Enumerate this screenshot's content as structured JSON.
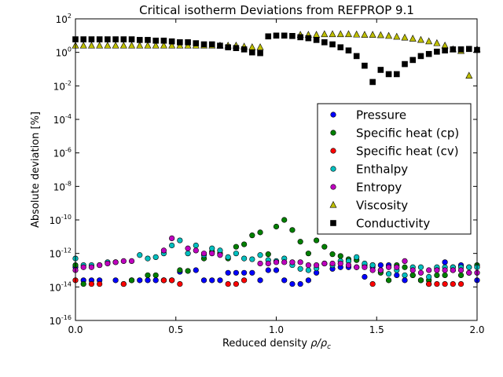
{
  "chart_data": {
    "type": "scatter",
    "title": "Critical isotherm Deviations from REFPROP 9.1",
    "xlabel": "Reduced density ρ/ρ_c",
    "xlabel_main": "Reduced density ",
    "xlabel_sym": "ρ/ρ",
    "xlabel_sub": "c",
    "ylabel": "Absolute deviation [%]",
    "xlim": [
      0,
      2
    ],
    "ylim_log10": [
      -16,
      2
    ],
    "yscale": "log",
    "grid": false,
    "legend_placement": "right",
    "x_ticks": [
      "0.0",
      "0.5",
      "1.0",
      "1.5",
      "2.0"
    ],
    "y_ticks": [
      {
        "base": "10",
        "exp": "2"
      },
      {
        "base": "10",
        "exp": "0"
      },
      {
        "base": "10",
        "exp": "-2"
      },
      {
        "base": "10",
        "exp": "-4"
      },
      {
        "base": "10",
        "exp": "-6"
      },
      {
        "base": "10",
        "exp": "-8"
      },
      {
        "base": "10",
        "exp": "-10"
      },
      {
        "base": "10",
        "exp": "-12"
      },
      {
        "base": "10",
        "exp": "-14"
      },
      {
        "base": "10",
        "exp": "-16"
      }
    ],
    "x": [
      0.0,
      0.04,
      0.08,
      0.12,
      0.16,
      0.2,
      0.24,
      0.28,
      0.32,
      0.36,
      0.4,
      0.44,
      0.48,
      0.52,
      0.56,
      0.6,
      0.64,
      0.68,
      0.72,
      0.76,
      0.8,
      0.84,
      0.88,
      0.92,
      0.96,
      1.0,
      1.04,
      1.08,
      1.12,
      1.16,
      1.2,
      1.24,
      1.28,
      1.32,
      1.36,
      1.4,
      1.44,
      1.48,
      1.52,
      1.56,
      1.6,
      1.64,
      1.68,
      1.72,
      1.76,
      1.8,
      1.84,
      1.88,
      1.92,
      1.96,
      2.0
    ],
    "series": [
      {
        "name": "Pressure",
        "marker": "circle",
        "color": "#0000ff",
        "values": [
          1.5e-13,
          2.5e-14,
          2.5e-14,
          2.5e-14,
          null,
          2.5e-14,
          null,
          2.5e-14,
          2.5e-14,
          2.5e-14,
          2.5e-14,
          2.5e-14,
          2.5e-14,
          8e-14,
          null,
          1e-13,
          2.5e-14,
          2.5e-14,
          2.5e-14,
          7e-14,
          7e-14,
          7e-14,
          7e-14,
          2.5e-14,
          1e-13,
          1e-13,
          2.5e-14,
          1.5e-14,
          1.5e-14,
          2.5e-14,
          7e-14,
          2.5e-13,
          1.2e-13,
          1.5e-13,
          1.5e-13,
          1.5e-13,
          4e-14,
          1.5e-13,
          2e-13,
          2e-13,
          5e-14,
          2.5e-14,
          5e-14,
          2.5e-14,
          1.5e-14,
          1.2e-13,
          3e-13,
          1.5e-13,
          2e-13,
          1.5e-13,
          2.5e-14
        ]
      },
      {
        "name": "Specific heat (cp)",
        "marker": "circle",
        "color": "#008000",
        "values": [
          2e-13,
          1.5e-14,
          null,
          null,
          null,
          null,
          1.5e-14,
          2.5e-14,
          null,
          5e-14,
          5e-14,
          2.5e-14,
          null,
          1e-13,
          9e-14,
          null,
          5e-13,
          1.3e-12,
          1e-12,
          5e-13,
          2.5e-12,
          3.5e-12,
          1.2e-11,
          1.8e-11,
          9e-13,
          4e-11,
          1e-10,
          2.5e-11,
          5e-12,
          1e-12,
          6e-12,
          2.5e-12,
          9e-13,
          7e-13,
          4.5e-13,
          4e-13,
          2e-13,
          2e-13,
          7e-14,
          2.5e-14,
          2e-13,
          1.5e-13,
          5e-14,
          2.5e-14,
          2.5e-14,
          5e-14,
          5e-14,
          1e-13,
          5e-14,
          7e-14,
          2e-13
        ]
      },
      {
        "name": "Specific heat (cv)",
        "marker": "circle",
        "color": "#ff0000",
        "values": [
          2.5e-14,
          null,
          1.5e-14,
          1.5e-14,
          null,
          null,
          1.5e-14,
          null,
          null,
          null,
          null,
          2.5e-14,
          2.5e-14,
          1.5e-14,
          null,
          null,
          null,
          null,
          null,
          1.5e-14,
          1.5e-14,
          2.5e-14,
          null,
          null,
          null,
          null,
          null,
          null,
          null,
          null,
          null,
          null,
          null,
          null,
          null,
          null,
          null,
          1.5e-14,
          null,
          null,
          null,
          null,
          null,
          null,
          1.5e-14,
          1.5e-14,
          1.5e-14,
          1.5e-14,
          1.5e-14,
          null,
          null
        ]
      },
      {
        "name": "Enthalpy",
        "marker": "circle",
        "color": "#00bfbf",
        "values": [
          5e-13,
          2e-13,
          2e-13,
          2e-13,
          3e-13,
          3e-13,
          null,
          null,
          8e-13,
          5e-13,
          6e-13,
          1e-12,
          3e-12,
          6e-12,
          1e-12,
          3e-12,
          8e-13,
          2e-12,
          1.5e-12,
          6e-13,
          1e-12,
          5e-13,
          4.5e-13,
          8e-13,
          4e-13,
          3.5e-13,
          5e-13,
          2e-13,
          1.2e-13,
          1e-13,
          1.3e-13,
          2.5e-13,
          2e-13,
          3.5e-13,
          3.5e-13,
          6e-13,
          2.5e-13,
          2e-13,
          1e-13,
          6e-14,
          1e-13,
          5e-14,
          1.5e-13,
          1.5e-13,
          4e-14,
          1.5e-13,
          1.5e-13,
          1.5e-13,
          1.5e-13,
          1.5e-13,
          1.5e-13
        ]
      },
      {
        "name": "Entropy",
        "marker": "circle",
        "color": "#bf00bf",
        "values": [
          1e-13,
          1.5e-13,
          1.5e-13,
          2e-13,
          2.5e-13,
          3e-13,
          3.5e-13,
          3.5e-13,
          null,
          null,
          null,
          1.5e-12,
          8e-12,
          null,
          2e-12,
          1.5e-12,
          1e-12,
          1e-12,
          8e-13,
          null,
          null,
          null,
          null,
          2.5e-13,
          2.5e-13,
          3e-13,
          3e-13,
          3e-13,
          3e-13,
          2e-13,
          2e-13,
          2.5e-13,
          2.5e-13,
          2.5e-13,
          2e-13,
          1.5e-13,
          1.5e-13,
          1e-13,
          1e-13,
          1.5e-13,
          1.5e-13,
          3.5e-13,
          1e-13,
          7e-14,
          1e-13,
          1e-13,
          1e-13,
          1e-13,
          1e-13,
          7e-14,
          7e-14
        ]
      },
      {
        "name": "Viscosity",
        "marker": "triangle",
        "color": "#bfbf00",
        "values": [
          2.5,
          2.5,
          2.5,
          2.5,
          2.5,
          2.5,
          2.5,
          2.5,
          2.5,
          2.5,
          2.5,
          2.5,
          2.5,
          2.5,
          2.5,
          2.5,
          2.5,
          2.5,
          2.5,
          2.5,
          2.5,
          2.2,
          2.0,
          2.0,
          null,
          null,
          null,
          null,
          11,
          11,
          11,
          12,
          12,
          12,
          12,
          11.5,
          11,
          11,
          10.5,
          9.5,
          8.5,
          7.5,
          6.5,
          5.5,
          4.5,
          3.5,
          2.5,
          1.5,
          1.2,
          0.04,
          1.5
        ]
      },
      {
        "name": "Conductivity",
        "marker": "square",
        "color": "#000000",
        "values": [
          6,
          6,
          6,
          6,
          6,
          6,
          6,
          6,
          5.5,
          5.5,
          5,
          5,
          4.5,
          4,
          4,
          3.5,
          3,
          3,
          2.5,
          2,
          1.8,
          1.5,
          1,
          0.9,
          9,
          10,
          10,
          9.5,
          8,
          7,
          5.5,
          4,
          3,
          2,
          1.3,
          0.6,
          0.16,
          0.017,
          0.09,
          0.05,
          0.05,
          0.2,
          0.35,
          0.6,
          0.8,
          1.1,
          1.3,
          1.5,
          1.5,
          1.6,
          1.4
        ]
      }
    ]
  }
}
